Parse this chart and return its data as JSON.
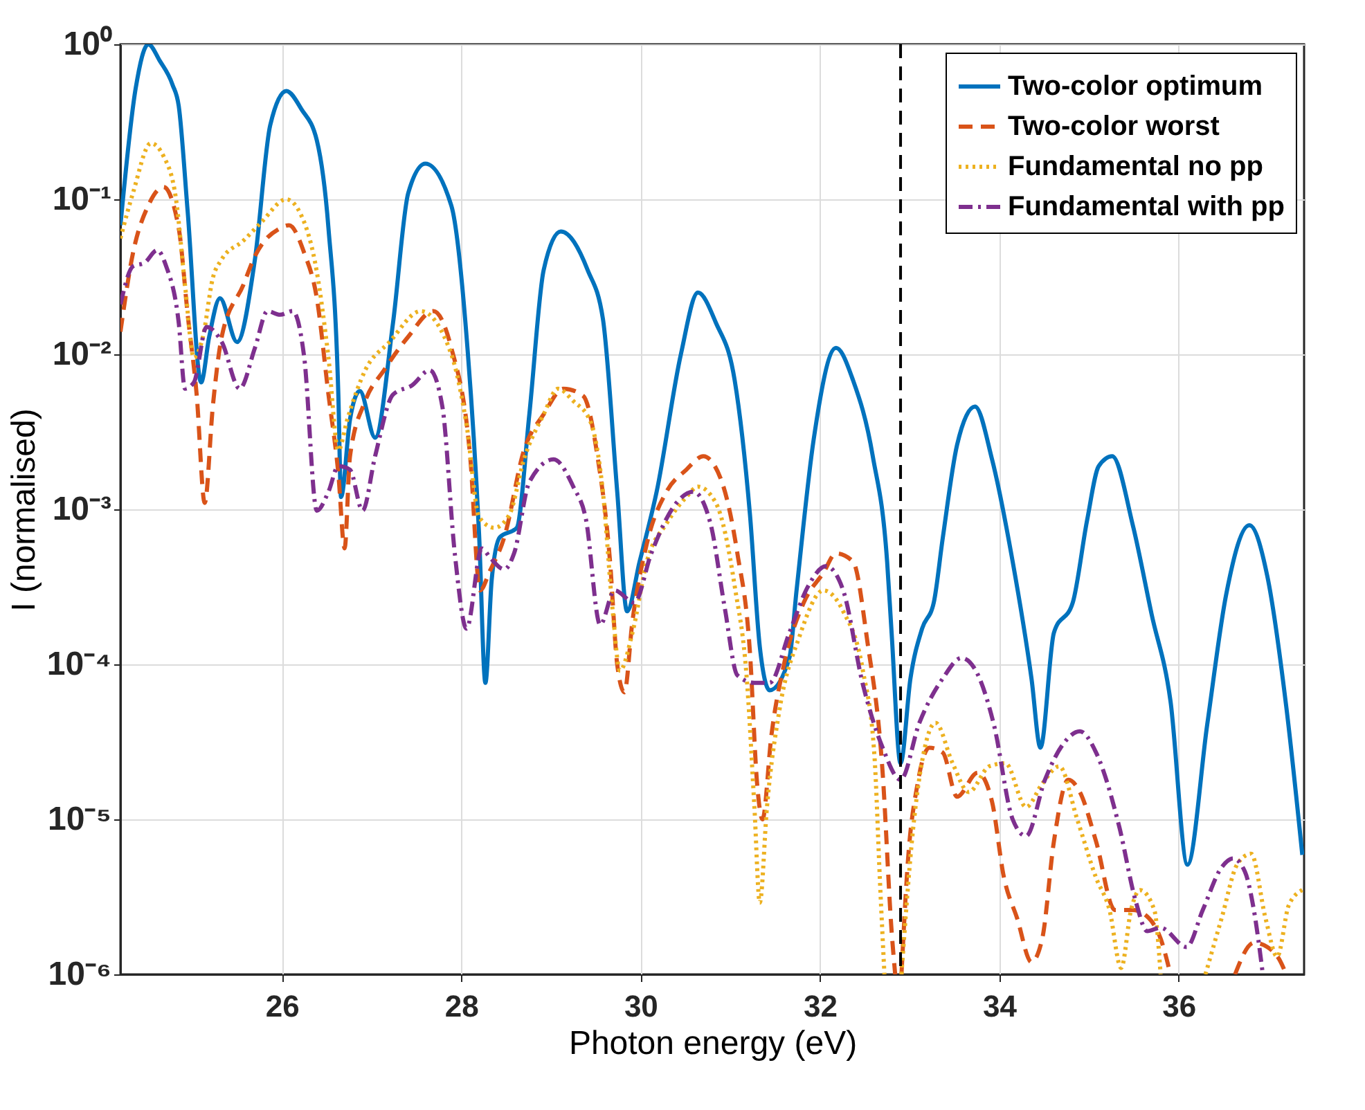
{
  "chart_data": {
    "type": "line",
    "xlabel": "Photon energy (eV)",
    "ylabel": "I (normalised)",
    "log": "y",
    "grid": true,
    "legend": "top right",
    "xlim": [
      24.2,
      37.4
    ],
    "xticks": [
      26,
      28,
      30,
      32,
      34,
      36
    ],
    "ylim": [
      1e-06,
      1
    ],
    "yticks": [
      {
        "value": 1e-06,
        "label": "10⁻⁶"
      },
      {
        "value": 1e-05,
        "label": "10⁻⁵"
      },
      {
        "value": 0.0001,
        "label": "10⁻⁴"
      },
      {
        "value": 0.001,
        "label": "10⁻³"
      },
      {
        "value": 0.01,
        "label": "10⁻²"
      },
      {
        "value": 0.1,
        "label": "10⁻¹"
      },
      {
        "value": 1,
        "label": "10⁰"
      }
    ],
    "ref_lines": [
      {
        "axis": "x",
        "value": 32.9,
        "color": "#000000",
        "line_style": "dashed"
      }
    ],
    "series": [
      {
        "name": "Two-color optimum",
        "color": "#0072bd",
        "line_style": "solid",
        "x": [
          24.2,
          24.37,
          24.51,
          24.64,
          24.78,
          24.85,
          24.95,
          25.1,
          25.19,
          25.31,
          25.5,
          25.7,
          25.87,
          26.05,
          26.22,
          26.39,
          26.52,
          26.63,
          26.66,
          26.76,
          26.87,
          27.04,
          27.24,
          27.41,
          27.6,
          27.89,
          28.06,
          28.2,
          28.27,
          28.34,
          28.43,
          28.62,
          28.76,
          28.92,
          29.11,
          29.41,
          29.58,
          29.74,
          29.85,
          29.99,
          30.18,
          30.45,
          30.64,
          30.84,
          31.05,
          31.22,
          31.33,
          31.44,
          31.66,
          31.74,
          31.93,
          32.18,
          32.37,
          32.59,
          32.75,
          32.8,
          32.9,
          33.01,
          33.14,
          33.27,
          33.37,
          33.53,
          33.73,
          33.92,
          34.15,
          34.36,
          34.46,
          34.61,
          34.82,
          34.98,
          35.11,
          35.26,
          35.49,
          35.7,
          35.91,
          36.1,
          36.32,
          36.53,
          36.79,
          36.99,
          37.2,
          37.38
        ],
        "values": [
          0.068,
          0.52,
          1.0,
          0.78,
          0.55,
          0.4,
          0.083,
          0.0066,
          0.013,
          0.023,
          0.012,
          0.041,
          0.3,
          0.5,
          0.38,
          0.24,
          0.065,
          0.0055,
          0.0012,
          0.0038,
          0.0058,
          0.0029,
          0.016,
          0.11,
          0.17,
          0.091,
          0.013,
          0.00068,
          7.6e-05,
          0.00035,
          0.00066,
          0.00076,
          0.0041,
          0.035,
          0.062,
          0.035,
          0.017,
          0.0013,
          0.00022,
          0.00046,
          0.0013,
          0.01,
          0.025,
          0.016,
          0.0068,
          0.00093,
          0.00013,
          6.8e-05,
          0.00011,
          0.0003,
          0.0028,
          0.011,
          0.0068,
          0.0022,
          0.00046,
          0.00016,
          2.3e-05,
          8.1e-05,
          0.00017,
          0.00025,
          0.00065,
          0.0026,
          0.0046,
          0.0021,
          0.00046,
          8.1e-05,
          2.9e-05,
          0.00016,
          0.00025,
          0.00085,
          0.0019,
          0.0022,
          0.00079,
          0.00021,
          5.8e-05,
          5.1e-06,
          4.1e-05,
          0.00028,
          0.00079,
          0.00037,
          5.4e-05,
          5.9e-06
        ]
      },
      {
        "name": "Two-color worst",
        "color": "#d95319",
        "line_style": "dashed",
        "x": [
          24.2,
          24.34,
          24.51,
          24.68,
          24.85,
          24.95,
          25.05,
          25.14,
          25.23,
          25.33,
          25.57,
          25.7,
          25.98,
          26.08,
          26.25,
          26.39,
          26.52,
          26.63,
          26.7,
          26.76,
          26.93,
          27.14,
          27.41,
          27.69,
          27.89,
          28.1,
          28.21,
          28.32,
          28.48,
          28.7,
          28.92,
          29.14,
          29.36,
          29.52,
          29.66,
          29.74,
          29.82,
          29.91,
          30.07,
          30.29,
          30.51,
          30.7,
          30.89,
          31.08,
          31.22,
          31.3,
          31.36,
          31.46,
          31.6,
          31.82,
          32.04,
          32.18,
          32.37,
          32.53,
          32.7,
          32.8,
          32.84,
          32.88,
          32.91,
          32.98,
          33.09,
          33.22,
          33.37,
          33.53,
          33.76,
          33.92,
          34.05,
          34.2,
          34.36,
          34.48,
          34.61,
          34.77,
          34.9,
          35.08,
          35.29,
          35.49,
          35.67,
          35.8,
          35.91,
          36.2,
          36.63,
          36.84,
          36.99,
          37.14,
          37.2
        ],
        "values": [
          0.014,
          0.045,
          0.091,
          0.12,
          0.065,
          0.018,
          0.0055,
          0.0011,
          0.0046,
          0.013,
          0.028,
          0.043,
          0.065,
          0.068,
          0.045,
          0.023,
          0.0055,
          0.0017,
          0.00056,
          0.0022,
          0.005,
          0.0079,
          0.013,
          0.019,
          0.011,
          0.0022,
          0.0003,
          0.0004,
          0.00066,
          0.0024,
          0.0041,
          0.006,
          0.0054,
          0.0022,
          0.00046,
          0.0001,
          6.6e-05,
          0.00019,
          0.0006,
          0.0013,
          0.0018,
          0.0022,
          0.0016,
          0.00052,
          0.00012,
          1.7e-05,
          1e-05,
          3.5e-05,
          0.0001,
          0.00025,
          0.00039,
          0.00052,
          0.00046,
          0.00014,
          2e-05,
          1.9e-06,
          1e-06,
          null,
          1e-06,
          5.2e-06,
          1.7e-05,
          2.9e-05,
          2.7e-05,
          1.4e-05,
          2e-05,
          1.3e-05,
          4.3e-06,
          2.3e-06,
          1.2e-06,
          1.7e-06,
          7.2e-06,
          1.8e-05,
          1.5e-05,
          7.2e-06,
          2.6e-06,
          2.6e-06,
          2.3e-06,
          1.7e-06,
          1e-06,
          null,
          1e-06,
          1.6e-06,
          1.5e-06,
          1.2e-06,
          1e-06
        ]
      },
      {
        "name": "Fundamental no pp",
        "color": "#edb120",
        "line_style": "dotted",
        "x": [
          24.2,
          24.34,
          24.54,
          24.68,
          24.82,
          24.92,
          25.02,
          25.12,
          25.23,
          25.33,
          25.57,
          25.77,
          26.05,
          26.22,
          26.39,
          26.52,
          26.63,
          26.73,
          26.93,
          27.2,
          27.55,
          27.89,
          28.06,
          28.2,
          28.37,
          28.54,
          28.7,
          28.92,
          29.08,
          29.25,
          29.44,
          29.58,
          29.69,
          29.77,
          29.91,
          30.07,
          30.29,
          30.51,
          30.64,
          30.84,
          31.05,
          31.19,
          31.27,
          31.33,
          31.41,
          31.55,
          31.77,
          32.04,
          32.26,
          32.48,
          32.61,
          32.67,
          32.72,
          32.8,
          32.91,
          33.04,
          33.17,
          33.29,
          33.48,
          33.66,
          33.89,
          34.07,
          34.3,
          34.48,
          34.67,
          34.87,
          35.08,
          35.23,
          35.36,
          35.47,
          35.57,
          35.73,
          35.8,
          36.0,
          36.3,
          36.48,
          36.66,
          36.81,
          36.97,
          37.1,
          37.23,
          37.38
        ],
        "values": [
          0.056,
          0.11,
          0.23,
          0.19,
          0.1,
          0.028,
          0.0095,
          0.013,
          0.031,
          0.041,
          0.054,
          0.071,
          0.1,
          0.078,
          0.034,
          0.0095,
          0.0024,
          0.0038,
          0.0079,
          0.012,
          0.019,
          0.01,
          0.0035,
          0.00089,
          0.00076,
          0.00093,
          0.0021,
          0.0041,
          0.006,
          0.005,
          0.0037,
          0.0013,
          0.00022,
          9.1e-05,
          0.00016,
          0.00046,
          0.00081,
          0.0012,
          0.0014,
          0.0011,
          0.00032,
          7.4e-05,
          1.2e-05,
          2.9e-06,
          1.2e-05,
          5.1e-05,
          0.00015,
          0.0003,
          0.00022,
          9.1e-05,
          2.5e-05,
          4e-06,
          1e-06,
          null,
          1e-06,
          8.7e-06,
          2.9e-05,
          4.2e-05,
          2.3e-05,
          1.5e-05,
          2.2e-05,
          2.3e-05,
          1.2e-05,
          1.7e-05,
          2.2e-05,
          1e-05,
          4.2e-06,
          2.6e-06,
          1.1e-06,
          2.6e-06,
          3.5e-06,
          2.6e-06,
          1e-06,
          null,
          1e-06,
          2.3e-06,
          5.2e-06,
          6e-06,
          2.3e-06,
          1.3e-06,
          2.8e-06,
          3.5e-06
        ]
      },
      {
        "name": "Fundamental with pp",
        "color": "#7e2f8e",
        "line_style": "dashdot",
        "x": [
          24.2,
          24.34,
          24.47,
          24.61,
          24.71,
          24.85,
          24.92,
          25.02,
          25.16,
          25.33,
          25.53,
          25.7,
          25.84,
          25.98,
          26.12,
          26.25,
          26.39,
          26.52,
          26.63,
          26.76,
          26.9,
          27.04,
          27.24,
          27.45,
          27.65,
          27.79,
          27.93,
          28.06,
          28.23,
          28.32,
          28.48,
          28.59,
          28.76,
          29.03,
          29.25,
          29.39,
          29.55,
          29.71,
          29.93,
          30.12,
          30.4,
          30.59,
          30.78,
          30.94,
          31.08,
          31.27,
          31.44,
          31.66,
          31.87,
          32.07,
          32.26,
          32.48,
          32.7,
          32.9,
          33.11,
          33.37,
          33.58,
          33.73,
          33.94,
          34.15,
          34.3,
          34.51,
          34.72,
          34.9,
          35.08,
          35.34,
          35.52,
          35.65,
          35.8,
          36.09,
          36.27,
          36.48,
          36.61,
          36.74,
          36.84,
          36.94
        ],
        "values": [
          0.021,
          0.037,
          0.039,
          0.047,
          0.037,
          0.016,
          0.006,
          0.0066,
          0.015,
          0.012,
          0.006,
          0.011,
          0.019,
          0.018,
          0.019,
          0.0095,
          0.00098,
          0.0013,
          0.0019,
          0.0018,
          0.00098,
          0.0022,
          0.0055,
          0.0063,
          0.0079,
          0.0046,
          0.00051,
          0.00017,
          0.00056,
          0.00049,
          0.00041,
          0.00052,
          0.0015,
          0.0021,
          0.0014,
          0.00087,
          0.00018,
          0.0003,
          0.00025,
          0.00052,
          0.0011,
          0.0013,
          0.00081,
          0.00023,
          8.5e-05,
          7.6e-05,
          7.6e-05,
          0.00016,
          0.00032,
          0.00043,
          0.0003,
          7.4e-05,
          2.9e-05,
          1.8e-05,
          4.2e-05,
          8.1e-05,
          0.00011,
          9.3e-05,
          4.1e-05,
          1e-05,
          7.8e-06,
          1.8e-05,
          3.1e-05,
          3.7e-05,
          2.7e-05,
          8.9e-06,
          3e-06,
          1.9e-06,
          2e-06,
          1.5e-06,
          2.6e-06,
          4.9e-06,
          5.6e-06,
          4.6e-06,
          2.6e-06,
          1e-06
        ]
      }
    ]
  }
}
